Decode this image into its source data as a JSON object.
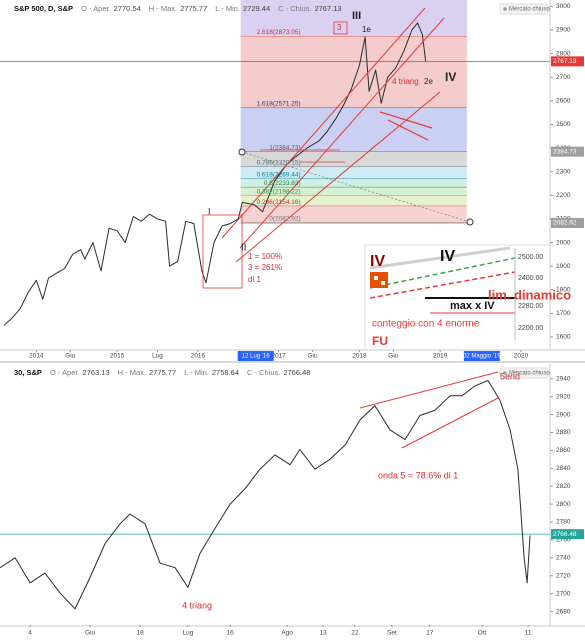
{
  "chart_data": [
    {
      "type": "line",
      "title": "S&P 500, D, S&P",
      "ohlc": [
        {
          "label": "O - Aper.",
          "value": 2770.54
        },
        {
          "label": "H - Max.",
          "value": 2775.77
        },
        {
          "label": "L - Min.",
          "value": 2729.44
        },
        {
          "label": "C - Chius.",
          "value": 2767.13
        }
      ],
      "status": "Mercato chiuso",
      "color": "#2b2b2b",
      "x": [
        2013.6,
        2013.7,
        2013.8,
        2013.9,
        2014.0,
        2014.08,
        2014.15,
        2014.25,
        2014.35,
        2014.45,
        2014.55,
        2014.6,
        2014.7,
        2014.8,
        2014.9,
        2015.0,
        2015.1,
        2015.2,
        2015.3,
        2015.4,
        2015.5,
        2015.6,
        2015.65,
        2015.75,
        2015.85,
        2015.95,
        2016.05,
        2016.1,
        2016.2,
        2016.3,
        2016.4,
        2016.5,
        2016.55,
        2016.7,
        2016.8,
        2016.87,
        2016.95,
        2017.1,
        2017.2,
        2017.35,
        2017.5,
        2017.6,
        2017.7,
        2017.8,
        2017.9,
        2018.0,
        2018.07,
        2018.12,
        2018.2,
        2018.27,
        2018.35,
        2018.45,
        2018.55,
        2018.65,
        2018.72,
        2018.78,
        2018.82
      ],
      "values": [
        1650,
        1680,
        1720,
        1790,
        1840,
        1760,
        1850,
        1870,
        1890,
        1950,
        1970,
        1930,
        2000,
        1880,
        2060,
        2050,
        2000,
        2110,
        2090,
        2120,
        2100,
        2090,
        1900,
        1920,
        2090,
        2080,
        1880,
        1830,
        2000,
        2070,
        2080,
        2100,
        2170,
        2160,
        2130,
        2190,
        2260,
        2330,
        2360,
        2400,
        2430,
        2470,
        2520,
        2580,
        2650,
        2750,
        2870,
        2640,
        2730,
        2590,
        2700,
        2740,
        2810,
        2900,
        2930,
        2880,
        2767
      ],
      "xlim": [
        2013.55,
        2020.05
      ],
      "ylim": [
        1545,
        3010
      ],
      "xticks": [
        2014,
        {
          "value": 2014.42,
          "label": "Giu"
        },
        2015,
        {
          "value": 2015.5,
          "label": "Lug"
        },
        2016,
        2017,
        {
          "value": 2017.42,
          "label": "Giu"
        },
        2018,
        {
          "value": 2018.42,
          "label": "Giu"
        },
        2019,
        2020
      ],
      "x_markers": [
        {
          "value": 2016.53,
          "label": "12 Lug '16"
        },
        {
          "value": 2019.33,
          "label": "02 Maggio '19"
        }
      ],
      "yticks": [
        1600,
        1700,
        1800,
        1900,
        2000,
        2100,
        2200,
        2300,
        2400,
        2500,
        2600,
        2700,
        2800,
        2900,
        3000
      ],
      "price_badges": [
        {
          "value": 2767.13,
          "color": "#e53935",
          "line": true
        },
        {
          "value": 2384.73,
          "color": "#9e9e9e",
          "line": false
        },
        {
          "value": 2082.92,
          "color": "#9e9e9e",
          "line": false
        }
      ],
      "fib_levels": [
        {
          "label": "2.618(2873.05)",
          "value": 2873.05,
          "color": "#d9d0f2",
          "label_color": "#d32f2f"
        },
        {
          "label": "1.618(2571.25)",
          "value": 2571.25,
          "color": "#f4cccc",
          "label_color": "#283593"
        },
        {
          "label": "1(2384.73)",
          "value": 2384.73,
          "color": "#cbcff2",
          "label_color": "#616161"
        },
        {
          "label": "0.786(2320.15)",
          "value": 2320.15,
          "color": "#d8d8d8",
          "label_color": "#546e7a"
        },
        {
          "label": "0.618(2269.44)",
          "value": 2269.44,
          "color": "#d0eaf3",
          "label_color": "#00838f"
        },
        {
          "label": "0.5(2233.83)",
          "value": 2233.83,
          "color": "#cfeee5",
          "label_color": "#2e7d32"
        },
        {
          "label": "0.382(2198.22)",
          "value": 2198.22,
          "color": "#d6efd0",
          "label_color": "#388e3c"
        },
        {
          "label": "0.236(2154.16)",
          "value": 2154.16,
          "color": "#e4f3cd",
          "label_color": "#c62828"
        },
        {
          "label": "0(2082.92)",
          "value": 2082.92,
          "color": "#f6d2d2",
          "label_color": "#757575"
        }
      ],
      "annotations": [
        {
          "text": "III",
          "color": "#222222"
        },
        {
          "text": "3",
          "color": "#d32f2f"
        },
        {
          "text": "1e",
          "color": "#222222"
        },
        {
          "text": "IV",
          "color": "#222222"
        },
        {
          "text": "4 triang",
          "color": "#d32f2f"
        },
        {
          "text": "2e",
          "color": "#222222"
        },
        {
          "text": "I",
          "color": "#222222"
        },
        {
          "text": "II",
          "color": "#222222"
        },
        {
          "text": "1 = 100%",
          "color": "#d32f2f"
        },
        {
          "text": "3 = 261%",
          "color": "#d32f2f"
        },
        {
          "text": "di 1",
          "color": "#d32f2f"
        },
        {
          "text": "IV",
          "color": "#8b0000"
        },
        {
          "text": "IV",
          "color": "#111111"
        },
        {
          "text": "lim. dinamico",
          "color": "#e53935"
        },
        {
          "text": "max x IV",
          "color": "#111111"
        },
        {
          "text": "conteggio con 4 enorme",
          "color": "#e53935"
        },
        {
          "text": "FU",
          "color": "#e53935"
        },
        {
          "text": "2500.00",
          "color": "#444444"
        },
        {
          "text": "2400.00",
          "color": "#444444"
        },
        {
          "text": "2280.00",
          "color": "#444444"
        },
        {
          "text": "2200.00",
          "color": "#444444"
        }
      ]
    },
    {
      "type": "line",
      "title": "30, S&P",
      "ohlc": [
        {
          "label": "O - Aper.",
          "value": 2763.13
        },
        {
          "label": "H - Max.",
          "value": 2775.77
        },
        {
          "label": "L - Min.",
          "value": 2758.64
        },
        {
          "label": "C - Chius.",
          "value": 2766.48
        }
      ],
      "status": "Mercato chiuso",
      "color": "#2b2b2b",
      "x": [
        120,
        124.6,
        129.2,
        133.7,
        138.3,
        142.9,
        147.5,
        152.1,
        156.7,
        159.7,
        164.3,
        168.9,
        173.5,
        177.4,
        181.1,
        185.7,
        190.3,
        194.8,
        199.4,
        204,
        208.6,
        211.6,
        216.2,
        220.8,
        225.4,
        230,
        234.5,
        239.1,
        243.7,
        248.3,
        252.9,
        257.5,
        261.1,
        265.1,
        269.1,
        272.7,
        275.8,
        278.2,
        280.1,
        281,
        281.9
      ],
      "values": [
        2729,
        2740,
        2712,
        2723,
        2701,
        2683,
        2718,
        2756,
        2778,
        2789,
        2778,
        2734,
        2729,
        2707,
        2745,
        2773,
        2800,
        2817,
        2839,
        2855,
        2844,
        2861,
        2839,
        2850,
        2866,
        2894,
        2910,
        2883,
        2872,
        2899,
        2905,
        2921,
        2921,
        2932,
        2938,
        2916,
        2883,
        2839,
        2740,
        2712,
        2765
      ],
      "xlim": [
        120,
        288
      ],
      "ylim": [
        2665,
        2952
      ],
      "xticks": [
        {
          "value": 129.2,
          "label": "4"
        },
        {
          "value": 147.5,
          "label": "Giu"
        },
        {
          "value": 162.8,
          "label": "18"
        },
        {
          "value": 177.4,
          "label": "Lug"
        },
        {
          "value": 190.3,
          "label": "16"
        },
        {
          "value": 207.7,
          "label": "Ago"
        },
        {
          "value": 218.7,
          "label": "13"
        },
        {
          "value": 228.4,
          "label": "22"
        },
        {
          "value": 239.7,
          "label": "Set"
        },
        {
          "value": 251.3,
          "label": "17"
        },
        {
          "value": 267.2,
          "label": "Ott"
        },
        {
          "value": 281.3,
          "label": "11"
        }
      ],
      "yticks": [
        2680,
        2700,
        2720,
        2740,
        2760,
        2780,
        2800,
        2820,
        2840,
        2860,
        2880,
        2900,
        2920,
        2940
      ],
      "price_badges": [
        {
          "value": 2766.48,
          "color": "#26a69a",
          "line": true
        }
      ],
      "annotations": [
        {
          "text": "4 triang",
          "color": "#d32f2f"
        },
        {
          "text": "onda 5 = 78.6% di 1",
          "color": "#d32f2f"
        },
        {
          "text": "5end",
          "color": "#d32f2f"
        }
      ]
    }
  ]
}
